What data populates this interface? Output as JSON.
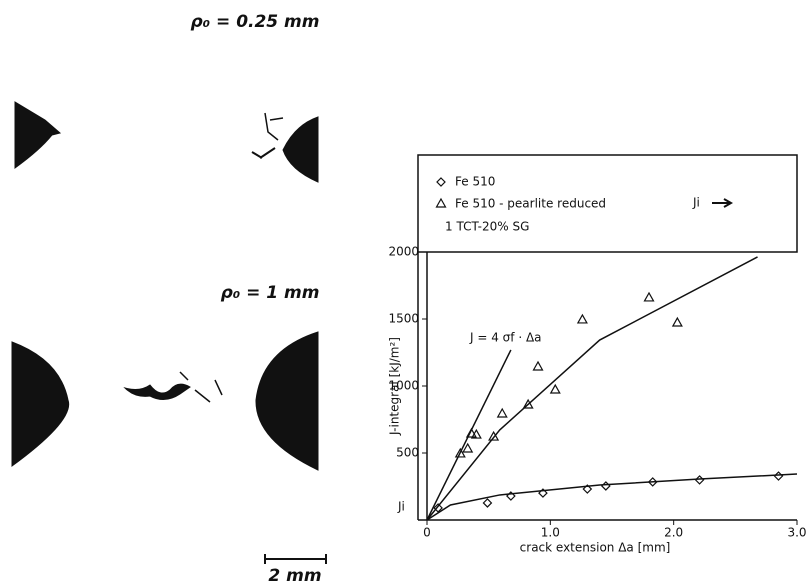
{
  "figure_labels": {
    "notch_small": "ρ₀ = 0.25 mm",
    "notch_large": "ρ₀ = 1 mm",
    "scale_bar": "2 mm"
  },
  "chart_data": {
    "type": "scatter",
    "x_label": "crack extension Δa [mm]",
    "y_label": "J-integral [kJ/m²]",
    "xlim": [
      0,
      3.0
    ],
    "xticks": [
      0,
      {
        "value": 1,
        "label": "1.0"
      },
      {
        "value": 2,
        "label": "2.0"
      },
      {
        "value": 3,
        "label": "3.0"
      }
    ],
    "ylim": [
      0,
      2000
    ],
    "yticks": [
      500,
      1000,
      1500,
      2000
    ],
    "legend_note": "1 TCT-20% SG",
    "legend_arrow_label": "Ji",
    "y_marker_label": "Ji",
    "annotation": "J = 4 σf · Δa",
    "series": [
      {
        "name": "Fe 510",
        "marker": "diamond",
        "color": "#111111",
        "x": [
          0.09,
          0.49,
          0.68,
          0.94,
          1.3,
          1.45,
          1.83,
          2.21,
          2.85
        ],
        "values": [
          90,
          127,
          179,
          201,
          231,
          254,
          284,
          299,
          328
        ]
      },
      {
        "name": "Fe 510 - pearlite reduced",
        "marker": "triangle",
        "color": "#111111",
        "x": [
          0.27,
          0.33,
          0.36,
          0.4,
          0.54,
          0.61,
          0.82,
          0.9,
          1.04,
          1.26,
          1.8,
          2.03
        ],
        "values": [
          493,
          530,
          642,
          634,
          619,
          791,
          858,
          1142,
          970,
          1493,
          1657,
          1470
        ]
      }
    ],
    "curves": [
      {
        "x": [
          0,
          0.19,
          0.59,
          1.4,
          2.21,
          3.0
        ],
        "values": [
          0,
          112,
          187,
          261,
          306,
          343
        ]
      },
      {
        "x": [
          0,
          0.59,
          1.4,
          2.68
        ],
        "values": [
          0,
          672,
          1343,
          1963
        ]
      },
      {
        "x": [
          0,
          0.68
        ],
        "values": [
          0,
          1269
        ]
      }
    ]
  }
}
